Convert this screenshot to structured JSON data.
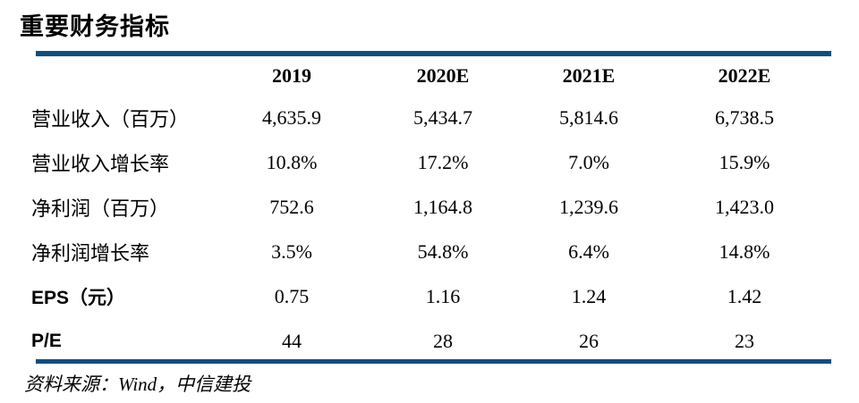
{
  "title": "重要财务指标",
  "table": {
    "header": [
      "2019",
      "2020E",
      "2021E",
      "2022E"
    ],
    "rows": [
      {
        "label": "营业收入（百万）",
        "values": [
          "4,635.9",
          "5,434.7",
          "5,814.6",
          "6,738.5"
        ]
      },
      {
        "label": "营业收入增长率",
        "values": [
          "10.8%",
          "17.2%",
          "7.0%",
          "15.9%"
        ]
      },
      {
        "label": "净利润（百万）",
        "values": [
          "752.6",
          "1,164.8",
          "1,239.6",
          "1,423.0"
        ]
      },
      {
        "label": "净利润增长率",
        "values": [
          "3.5%",
          "54.8%",
          "6.4%",
          "14.8%"
        ]
      },
      {
        "label": "EPS（元）",
        "values": [
          "0.75",
          "1.16",
          "1.24",
          "1.42"
        ]
      },
      {
        "label": "P/E",
        "values": [
          "44",
          "28",
          "26",
          "23"
        ]
      }
    ]
  },
  "source": "资料来源：Wind，中信建投",
  "colors": {
    "rule": "#0F4F7D",
    "text": "#000000",
    "background": "#FFFFFF"
  }
}
